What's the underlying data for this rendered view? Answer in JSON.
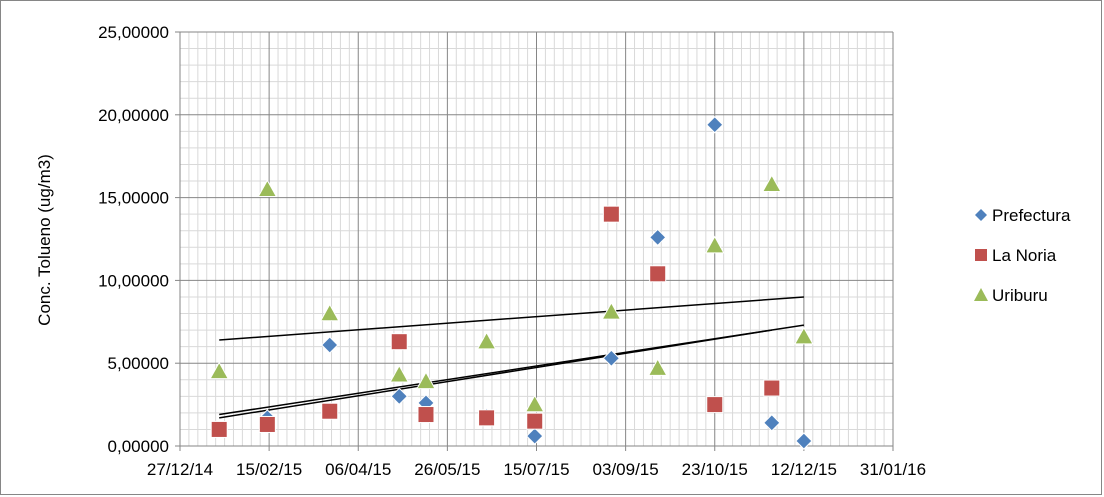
{
  "chart_data": {
    "type": "scatter",
    "ylabel": "Conc. Tolueno (ug/m3)",
    "xlabel": "",
    "title": "",
    "x_axis": {
      "type": "date",
      "min": "2014-12-27",
      "max": "2016-01-31",
      "tick_labels": [
        "27/12/14",
        "15/02/15",
        "06/04/15",
        "26/05/15",
        "15/07/15",
        "03/09/15",
        "23/10/15",
        "12/12/15",
        "31/01/16"
      ],
      "tick_dates": [
        "2014-12-27",
        "2015-02-15",
        "2015-04-06",
        "2015-05-26",
        "2015-07-15",
        "2015-09-03",
        "2015-10-23",
        "2015-12-12",
        "2016-01-31"
      ],
      "minor_gridlines": true
    },
    "y_axis": {
      "min": 0,
      "max": 25,
      "tick_values": [
        0,
        5,
        10,
        15,
        20,
        25
      ],
      "tick_labels": [
        "0,00000",
        "5,00000",
        "10,00000",
        "15,00000",
        "20,00000",
        "25,00000"
      ],
      "minor_gridlines": true
    },
    "legend_position": "right",
    "series": [
      {
        "name": "Prefectura",
        "marker": "diamond",
        "color": "#4f81bd",
        "points": [
          {
            "x": "2015-01-18",
            "y": 1.0
          },
          {
            "x": "2015-02-14",
            "y": 1.7
          },
          {
            "x": "2015-03-21",
            "y": 6.1
          },
          {
            "x": "2015-04-29",
            "y": 3.0
          },
          {
            "x": "2015-05-14",
            "y": 2.6
          },
          {
            "x": "2015-06-17",
            "y": 1.8
          },
          {
            "x": "2015-07-14",
            "y": 0.6
          },
          {
            "x": "2015-08-26",
            "y": 5.3
          },
          {
            "x": "2015-09-21",
            "y": 12.6
          },
          {
            "x": "2015-10-23",
            "y": 19.4
          },
          {
            "x": "2015-11-24",
            "y": 1.4
          },
          {
            "x": "2015-12-12",
            "y": 0.3
          }
        ],
        "trendline": {
          "x": [
            "2015-01-18",
            "2015-12-12"
          ],
          "y": [
            1.9,
            7.3
          ]
        }
      },
      {
        "name": "La Noria",
        "marker": "square",
        "color": "#c0504d",
        "points": [
          {
            "x": "2015-01-18",
            "y": 1.0
          },
          {
            "x": "2015-02-14",
            "y": 1.3
          },
          {
            "x": "2015-03-21",
            "y": 2.1
          },
          {
            "x": "2015-04-29",
            "y": 6.3
          },
          {
            "x": "2015-05-14",
            "y": 1.9
          },
          {
            "x": "2015-06-17",
            "y": 1.7
          },
          {
            "x": "2015-07-14",
            "y": 1.5
          },
          {
            "x": "2015-08-26",
            "y": 14.0
          },
          {
            "x": "2015-09-21",
            "y": 10.4
          },
          {
            "x": "2015-10-23",
            "y": 2.5
          },
          {
            "x": "2015-11-24",
            "y": 3.5
          }
        ],
        "trendline": {
          "x": [
            "2015-01-18",
            "2015-11-24"
          ],
          "y": [
            1.7,
            7.0
          ]
        }
      },
      {
        "name": "Uriburu",
        "marker": "triangle",
        "color": "#9bbb59",
        "points": [
          {
            "x": "2015-01-18",
            "y": 4.5
          },
          {
            "x": "2015-02-14",
            "y": 15.5
          },
          {
            "x": "2015-03-21",
            "y": 8.0
          },
          {
            "x": "2015-04-29",
            "y": 4.3
          },
          {
            "x": "2015-05-14",
            "y": 3.9
          },
          {
            "x": "2015-06-17",
            "y": 6.3
          },
          {
            "x": "2015-07-14",
            "y": 2.5
          },
          {
            "x": "2015-08-26",
            "y": 8.1
          },
          {
            "x": "2015-09-21",
            "y": 4.7
          },
          {
            "x": "2015-10-23",
            "y": 12.1
          },
          {
            "x": "2015-11-24",
            "y": 15.8
          },
          {
            "x": "2015-12-12",
            "y": 6.6
          }
        ],
        "trendline": {
          "x": [
            "2015-01-18",
            "2015-12-12"
          ],
          "y": [
            6.4,
            9.0
          ]
        }
      }
    ]
  }
}
